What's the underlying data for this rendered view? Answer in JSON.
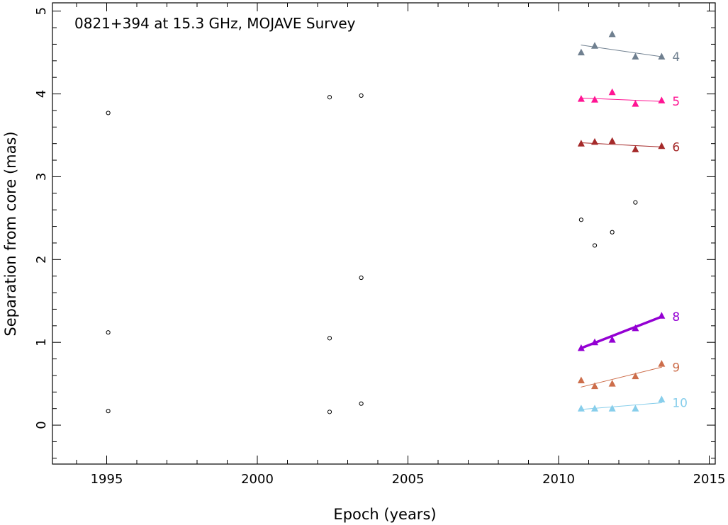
{
  "chart_data": {
    "type": "scatter",
    "title": "0821+394 at 15.3 GHz, MOJAVE Survey",
    "xlabel": "Epoch (years)",
    "ylabel": "Separation from core (mas)",
    "xlim": [
      1993.2,
      2015.2
    ],
    "ylim": [
      -0.47,
      5.1
    ],
    "x_ticks": [
      "1995",
      "2000",
      "2005",
      "2010",
      "2015"
    ],
    "y_ticks": [
      "0",
      "1",
      "2",
      "3",
      "4",
      "5"
    ],
    "grid": false,
    "unassigned_points": [
      {
        "x": 1995.05,
        "y": 3.77
      },
      {
        "x": 1995.05,
        "y": 1.12
      },
      {
        "x": 1995.05,
        "y": 0.17
      },
      {
        "x": 2002.4,
        "y": 3.96
      },
      {
        "x": 2002.4,
        "y": 1.05
      },
      {
        "x": 2002.4,
        "y": 0.16
      },
      {
        "x": 2003.45,
        "y": 3.98
      },
      {
        "x": 2003.45,
        "y": 1.78
      },
      {
        "x": 2003.45,
        "y": 0.26
      },
      {
        "x": 2010.75,
        "y": 2.48
      },
      {
        "x": 2011.2,
        "y": 2.17
      },
      {
        "x": 2011.78,
        "y": 2.33
      },
      {
        "x": 2012.55,
        "y": 2.69
      }
    ],
    "series": [
      {
        "name": "4",
        "color": "#708090",
        "width": 1,
        "points": [
          {
            "x": 2010.75,
            "y": 4.5
          },
          {
            "x": 2011.2,
            "y": 4.58
          },
          {
            "x": 2011.78,
            "y": 4.72
          },
          {
            "x": 2012.55,
            "y": 4.45
          },
          {
            "x": 2013.42,
            "y": 4.45
          }
        ],
        "fit": [
          {
            "x": 2010.75,
            "y": 4.59
          },
          {
            "x": 2013.42,
            "y": 4.45
          }
        ]
      },
      {
        "name": "5",
        "color": "#ff1493",
        "width": 1,
        "points": [
          {
            "x": 2010.75,
            "y": 3.94
          },
          {
            "x": 2011.2,
            "y": 3.93
          },
          {
            "x": 2011.78,
            "y": 4.02
          },
          {
            "x": 2012.55,
            "y": 3.88
          },
          {
            "x": 2013.42,
            "y": 3.92
          }
        ],
        "fit": [
          {
            "x": 2010.75,
            "y": 3.95
          },
          {
            "x": 2013.42,
            "y": 3.91
          }
        ]
      },
      {
        "name": "6",
        "color": "#a52a2a",
        "width": 1,
        "points": [
          {
            "x": 2010.75,
            "y": 3.4
          },
          {
            "x": 2011.2,
            "y": 3.42
          },
          {
            "x": 2011.78,
            "y": 3.43
          },
          {
            "x": 2012.55,
            "y": 3.33
          },
          {
            "x": 2013.42,
            "y": 3.37
          }
        ],
        "fit": [
          {
            "x": 2010.75,
            "y": 3.41
          },
          {
            "x": 2013.42,
            "y": 3.36
          }
        ]
      },
      {
        "name": "8",
        "color": "#9400d3",
        "width": 3.5,
        "points": [
          {
            "x": 2010.75,
            "y": 0.93
          },
          {
            "x": 2011.2,
            "y": 1.0
          },
          {
            "x": 2011.78,
            "y": 1.03
          },
          {
            "x": 2012.55,
            "y": 1.17
          },
          {
            "x": 2013.42,
            "y": 1.32
          }
        ],
        "fit": [
          {
            "x": 2010.75,
            "y": 0.93
          },
          {
            "x": 2013.42,
            "y": 1.31
          }
        ]
      },
      {
        "name": "9",
        "color": "#cd6e4b",
        "width": 1,
        "points": [
          {
            "x": 2010.75,
            "y": 0.54
          },
          {
            "x": 2011.2,
            "y": 0.47
          },
          {
            "x": 2011.78,
            "y": 0.5
          },
          {
            "x": 2012.55,
            "y": 0.59
          },
          {
            "x": 2013.42,
            "y": 0.74
          }
        ],
        "fit": [
          {
            "x": 2010.75,
            "y": 0.46
          },
          {
            "x": 2013.42,
            "y": 0.7
          }
        ]
      },
      {
        "name": "10",
        "color": "#87ceeb",
        "width": 1,
        "points": [
          {
            "x": 2010.75,
            "y": 0.2
          },
          {
            "x": 2011.2,
            "y": 0.2
          },
          {
            "x": 2011.78,
            "y": 0.2
          },
          {
            "x": 2012.55,
            "y": 0.2
          },
          {
            "x": 2013.42,
            "y": 0.31
          }
        ],
        "fit": [
          {
            "x": 2010.75,
            "y": 0.19
          },
          {
            "x": 2013.42,
            "y": 0.27
          }
        ]
      }
    ]
  }
}
